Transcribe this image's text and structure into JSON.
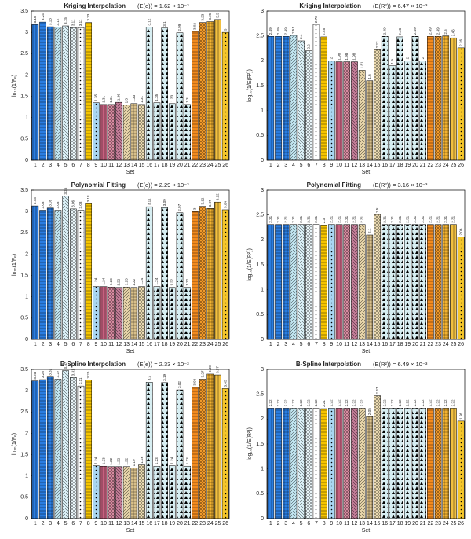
{
  "chart_data": [
    {
      "type": "bar",
      "title": "Kriging Interpolation",
      "annotation": "(E(e)) = 1.62 × 10⁻³",
      "ylabel": "ln₁₀(1/Fₑ)",
      "xlabel": "Set",
      "categories": [
        "1",
        "2",
        "3",
        "4",
        "5",
        "6",
        "7",
        "8",
        "9",
        "10",
        "11",
        "12",
        "13",
        "14",
        "15",
        "16",
        "17",
        "18",
        "19",
        "20",
        "21",
        "22",
        "23",
        "24",
        "25",
        "26"
      ],
      "values": [
        3.18,
        3.24,
        3.13,
        3.12,
        3.15,
        3.11,
        3.11,
        3.23,
        1.35,
        1.31,
        1.31,
        1.36,
        1.3,
        1.33,
        1.31,
        3.12,
        1.35,
        3.1,
        1.33,
        2.99,
        1.31,
        3.02,
        3.23,
        3.25,
        3.3,
        3.0
      ],
      "colors": [
        "#2a7de1",
        "#2a7de1",
        "#2a7de1",
        "#bfe3ee",
        "#d9eef5",
        "#e8f4f8",
        "#ffffff",
        "#f5c400",
        "#a9d6f2",
        "#c7607f",
        "#d88aa0",
        "#c07a95",
        "#e5d3a8",
        "#d9c08a",
        "#ead9b0",
        "#d7eef2",
        "#d7eef2",
        "#d7eef2",
        "#d7eef2",
        "#d7eef2",
        "#d7eef2",
        "#f28a1e",
        "#f29a2a",
        "#f2b230",
        "#f2c040",
        "#f5c62a"
      ],
      "ylim": [
        0,
        3.5
      ],
      "yticks": [
        0,
        0.5,
        1,
        1.5,
        2,
        2.5,
        3,
        3.5
      ]
    },
    {
      "type": "bar",
      "title": "Kriging Interpolation",
      "annotation": "(E(R²)) = 6.47 × 10⁻³",
      "ylabel": "log₁₀(1/E(R²))",
      "xlabel": "Set",
      "categories": [
        "1",
        "2",
        "3",
        "4",
        "5",
        "6",
        "7",
        "8",
        "9",
        "10",
        "11",
        "12",
        "13",
        "14",
        "15",
        "16",
        "17",
        "18",
        "19",
        "20",
        "21",
        "22",
        "23",
        "24",
        "25",
        "26"
      ],
      "values": [
        2.49,
        2.49,
        2.49,
        2.51,
        2.4,
        2.2,
        2.73,
        2.48,
        2.0,
        1.98,
        1.98,
        1.98,
        1.81,
        1.6,
        2.22,
        2.49,
        1.9,
        2.48,
        2.0,
        2.49,
        2.0,
        2.49,
        2.49,
        2.5,
        2.46,
        2.26
      ],
      "colors": [
        "#2a7de1",
        "#2a7de1",
        "#2a7de1",
        "#bfe3ee",
        "#d9eef5",
        "#e8f4f8",
        "#ffffff",
        "#f5c400",
        "#a9d6f2",
        "#c7607f",
        "#d88aa0",
        "#c07a95",
        "#e5d3a8",
        "#d9c08a",
        "#ead9b0",
        "#d7eef2",
        "#d7eef2",
        "#d7eef2",
        "#d7eef2",
        "#d7eef2",
        "#d7eef2",
        "#f28a1e",
        "#f29a2a",
        "#f2b230",
        "#f2c040",
        "#f5c62a"
      ],
      "ylim": [
        0,
        3
      ],
      "yticks": [
        0,
        0.5,
        1,
        1.5,
        2,
        2.5,
        3
      ]
    },
    {
      "type": "bar",
      "title": "Polynomial Fitting",
      "annotation": "(E(e)) = 2.29 × 10⁻³",
      "ylabel": "ln₁₀(1/Fₑ)",
      "xlabel": "Set",
      "categories": [
        "1",
        "2",
        "3",
        "4",
        "5",
        "6",
        "7",
        "8",
        "9",
        "10",
        "11",
        "12",
        "13",
        "14",
        "15",
        "16",
        "17",
        "18",
        "19",
        "20",
        "21",
        "22",
        "23",
        "24",
        "25",
        "26"
      ],
      "values": [
        3.13,
        3.03,
        3.08,
        3.03,
        3.36,
        3.06,
        3.03,
        3.18,
        1.24,
        1.24,
        1.23,
        1.22,
        1.23,
        1.22,
        1.24,
        3.11,
        1.24,
        3.09,
        1.22,
        2.97,
        1.22,
        3.0,
        3.12,
        3.07,
        3.22,
        3.04
      ],
      "colors": [
        "#2a7de1",
        "#2a7de1",
        "#2a7de1",
        "#bfe3ee",
        "#d9eef5",
        "#e8f4f8",
        "#ffffff",
        "#f5c400",
        "#a9d6f2",
        "#c7607f",
        "#d88aa0",
        "#c07a95",
        "#e5d3a8",
        "#d9c08a",
        "#ead9b0",
        "#d7eef2",
        "#d7eef2",
        "#d7eef2",
        "#d7eef2",
        "#d7eef2",
        "#d7eef2",
        "#f28a1e",
        "#f29a2a",
        "#f2b230",
        "#f2c040",
        "#f5c62a"
      ],
      "ylim": [
        0,
        3.5
      ],
      "yticks": [
        0,
        0.5,
        1,
        1.5,
        2,
        2.5,
        3,
        3.5
      ]
    },
    {
      "type": "bar",
      "title": "Polynomial Fitting",
      "annotation": "(E(R²)) = 3.16 × 10⁻³",
      "ylabel": "log₁₀(1/E(R²))",
      "xlabel": "Set",
      "categories": [
        "1",
        "2",
        "3",
        "4",
        "5",
        "6",
        "7",
        "8",
        "9",
        "10",
        "11",
        "12",
        "13",
        "14",
        "15",
        "16",
        "17",
        "18",
        "19",
        "20",
        "21",
        "22",
        "23",
        "24",
        "25",
        "26"
      ],
      "values": [
        2.31,
        2.31,
        2.31,
        2.31,
        2.31,
        2.31,
        2.31,
        2.3,
        2.31,
        2.31,
        2.31,
        2.31,
        2.31,
        2.1,
        2.51,
        2.31,
        2.31,
        2.31,
        2.31,
        2.31,
        2.31,
        2.31,
        2.31,
        2.31,
        2.31,
        2.06
      ],
      "colors": [
        "#2a7de1",
        "#2a7de1",
        "#2a7de1",
        "#bfe3ee",
        "#d9eef5",
        "#e8f4f8",
        "#ffffff",
        "#f5c400",
        "#a9d6f2",
        "#c7607f",
        "#d88aa0",
        "#c07a95",
        "#e5d3a8",
        "#d9c08a",
        "#ead9b0",
        "#d7eef2",
        "#d7eef2",
        "#d7eef2",
        "#d7eef2",
        "#d7eef2",
        "#d7eef2",
        "#f28a1e",
        "#f29a2a",
        "#f2b230",
        "#f2c040",
        "#f5c62a"
      ],
      "ylim": [
        0,
        3
      ],
      "yticks": [
        0,
        0.5,
        1,
        1.5,
        2,
        2.5,
        3
      ]
    },
    {
      "type": "bar",
      "title": "B-Spline Interpolation",
      "annotation": "(E(e)) = 2.33 × 10⁻³",
      "ylabel": "ln₁₀(1/Fₑ)",
      "xlabel": "Set",
      "categories": [
        "1",
        "2",
        "3",
        "4",
        "5",
        "6",
        "7",
        "8",
        "9",
        "10",
        "11",
        "12",
        "13",
        "14",
        "15",
        "16",
        "17",
        "18",
        "19",
        "20",
        "21",
        "22",
        "23",
        "24",
        "25",
        "26"
      ],
      "values": [
        3.23,
        3.26,
        3.32,
        3.27,
        3.47,
        3.31,
        3.11,
        3.25,
        1.24,
        1.23,
        1.22,
        1.22,
        1.22,
        1.19,
        1.26,
        3.2,
        1.23,
        3.19,
        1.24,
        3.02,
        1.23,
        3.08,
        3.27,
        3.39,
        3.37,
        3.05
      ],
      "colors": [
        "#2a7de1",
        "#2a7de1",
        "#2a7de1",
        "#bfe3ee",
        "#d9eef5",
        "#e8f4f8",
        "#ffffff",
        "#f5c400",
        "#a9d6f2",
        "#c7607f",
        "#d88aa0",
        "#c07a95",
        "#e5d3a8",
        "#d9c08a",
        "#ead9b0",
        "#d7eef2",
        "#d7eef2",
        "#d7eef2",
        "#d7eef2",
        "#d7eef2",
        "#d7eef2",
        "#f28a1e",
        "#f29a2a",
        "#f2b230",
        "#f2c040",
        "#f5c62a"
      ],
      "ylim": [
        0,
        3.5
      ],
      "yticks": [
        0,
        0.5,
        1,
        1.5,
        2,
        2.5,
        3,
        3.5
      ]
    },
    {
      "type": "bar",
      "title": "B-Spline Interpolation",
      "annotation": "(E(R²)) = 6.49 × 10⁻³",
      "ylabel": "log₁₀(1/E(R²))",
      "xlabel": "Set",
      "categories": [
        "1",
        "2",
        "3",
        "4",
        "5",
        "6",
        "7",
        "8",
        "9",
        "10",
        "11",
        "12",
        "13",
        "14",
        "15",
        "16",
        "17",
        "18",
        "19",
        "20",
        "21",
        "22",
        "23",
        "24",
        "25",
        "26"
      ],
      "values": [
        2.22,
        2.22,
        2.22,
        2.22,
        2.22,
        2.22,
        2.22,
        2.21,
        2.22,
        2.22,
        2.22,
        2.22,
        2.22,
        2.05,
        2.47,
        2.22,
        2.22,
        2.22,
        2.22,
        2.22,
        2.22,
        2.22,
        2.22,
        2.22,
        2.22,
        1.96
      ],
      "colors": [
        "#2a7de1",
        "#2a7de1",
        "#2a7de1",
        "#bfe3ee",
        "#d9eef5",
        "#e8f4f8",
        "#ffffff",
        "#f5c400",
        "#a9d6f2",
        "#c7607f",
        "#d88aa0",
        "#c07a95",
        "#e5d3a8",
        "#d9c08a",
        "#ead9b0",
        "#d7eef2",
        "#d7eef2",
        "#d7eef2",
        "#d7eef2",
        "#d7eef2",
        "#d7eef2",
        "#f28a1e",
        "#f29a2a",
        "#f2b230",
        "#f2c040",
        "#f5c62a"
      ],
      "ylim": [
        0,
        3
      ],
      "yticks": [
        0,
        0.5,
        1,
        1.5,
        2,
        2.5,
        3
      ]
    }
  ]
}
